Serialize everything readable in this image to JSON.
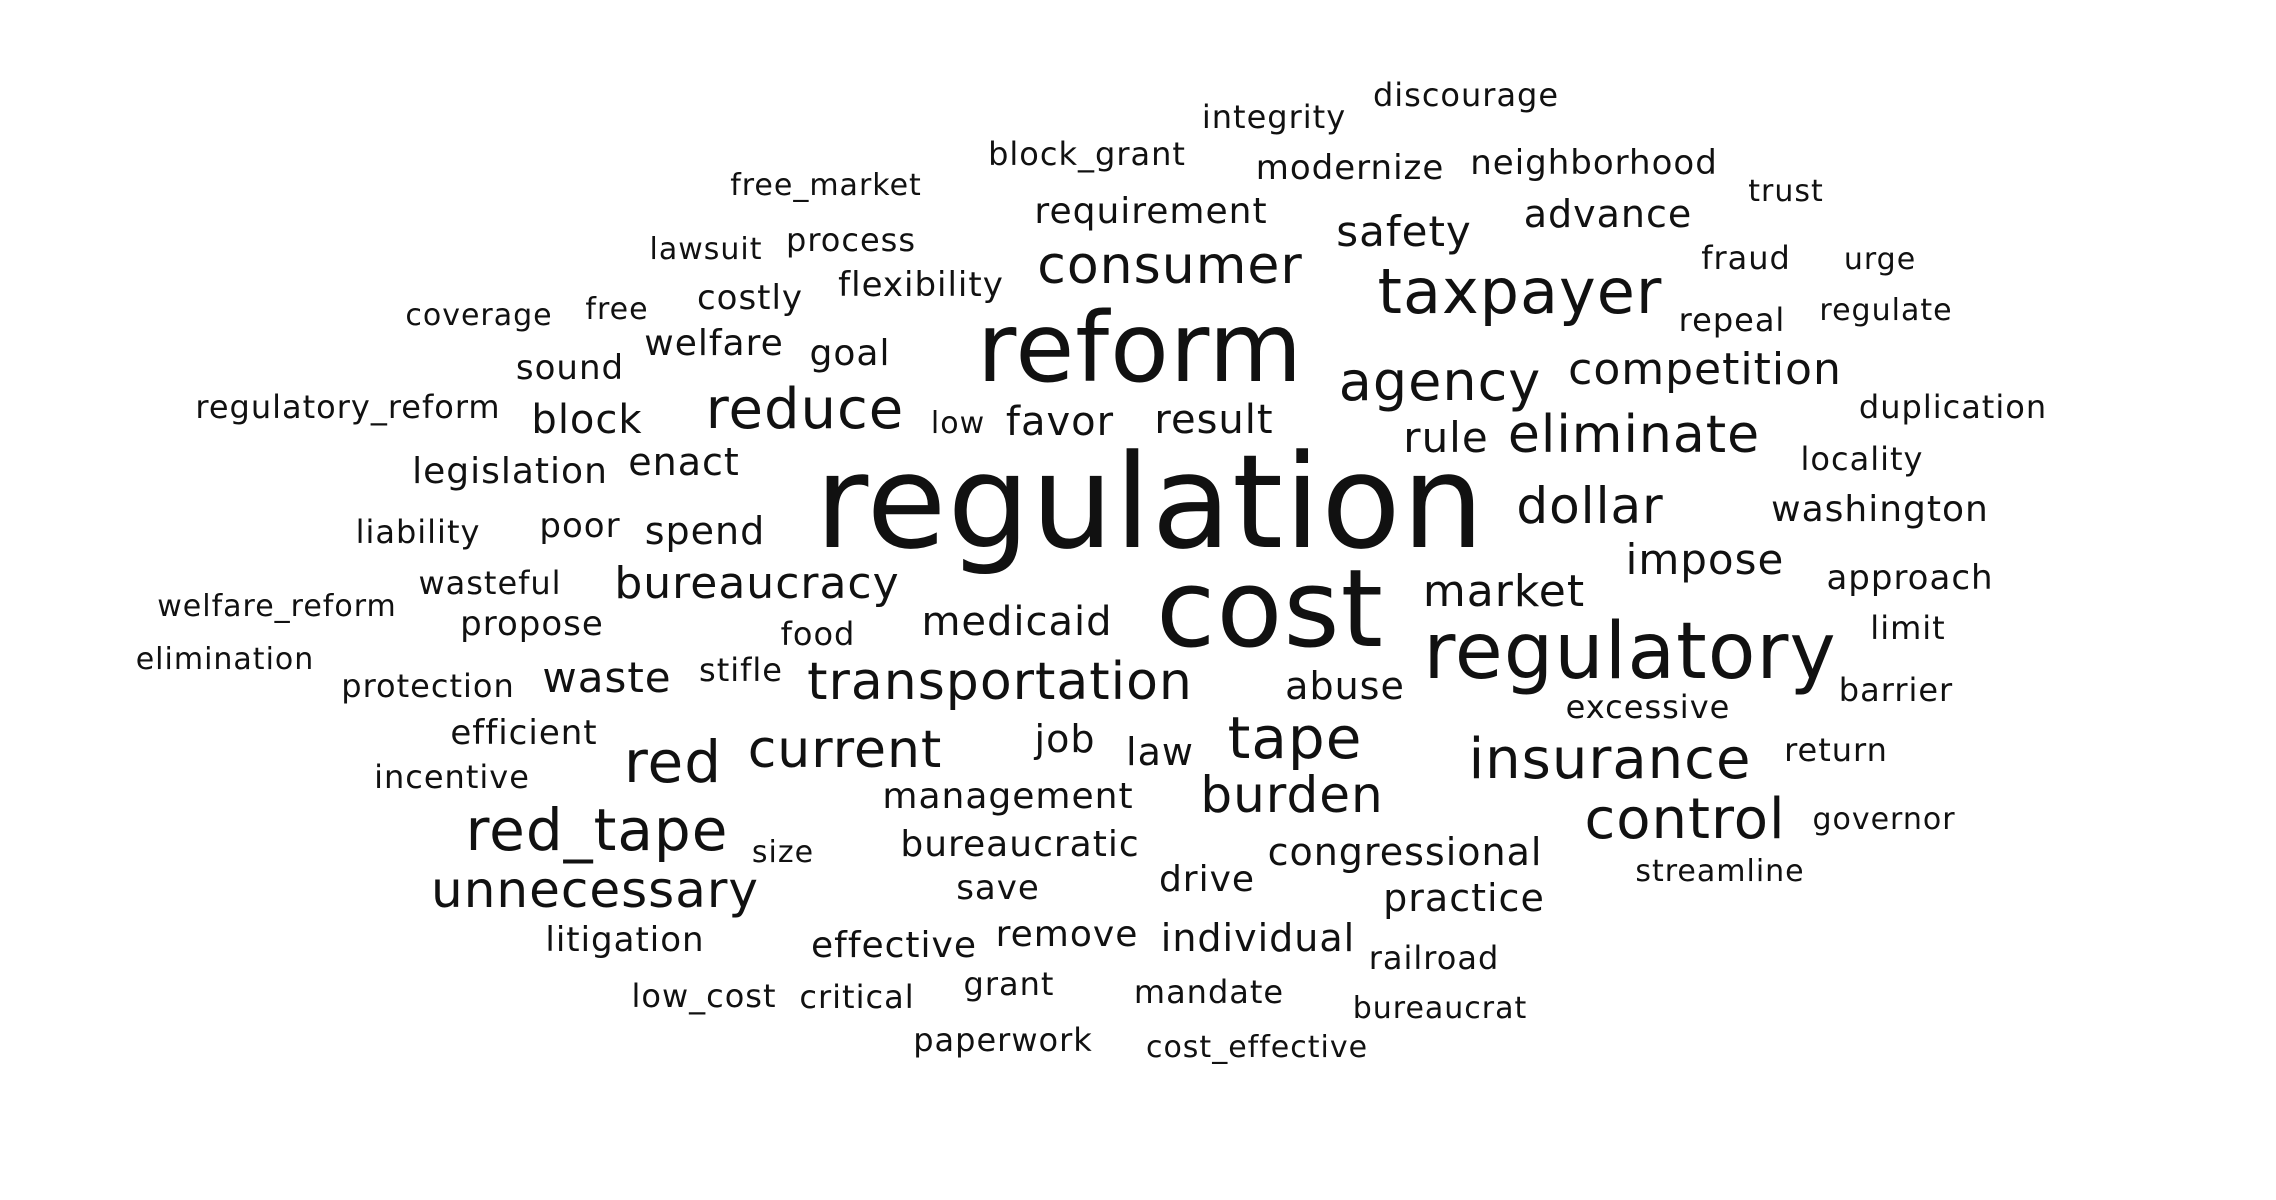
{
  "text_color": "#111111",
  "background_color": "#ffffff",
  "words": [
    "regulation",
    "cost",
    "reform",
    "regulatory",
    "taxpayer",
    "insurance",
    "tape",
    "red_tape",
    "control",
    "consumer",
    "red",
    "agency",
    "current",
    "eliminate",
    "reduce",
    "burden",
    "dollar",
    "transportation",
    "unnecessary",
    "competition",
    "bureaucracy",
    "market",
    "impose",
    "safety",
    "medicaid",
    "rule",
    "advance",
    "favor",
    "result",
    "congressional",
    "requirement",
    "practice",
    "block",
    "individual",
    "bureaucratic",
    "management",
    "waste",
    "abuse",
    "washington",
    "enact",
    "spend",
    "legislation",
    "approach",
    "drive",
    "remove",
    "welfare",
    "effective",
    "law",
    "goal",
    "poor",
    "save",
    "modernize",
    "neighborhood",
    "block_grant",
    "integrity",
    "discourage",
    "job",
    "costly",
    "sound",
    "litigation",
    "efficient",
    "propose",
    "flexibility",
    "process",
    "railroad",
    "mandate",
    "regulatory_reform",
    "critical",
    "duplication",
    "excessive",
    "fraud",
    "repeal",
    "urge",
    "regulate",
    "trust",
    "locality",
    "liability",
    "wasteful",
    "welfare_reform",
    "elimination",
    "protection",
    "incentive",
    "food",
    "stifle",
    "size",
    "paperwork",
    "grant",
    "low_cost",
    "cost_effective",
    "bureaucrat",
    "limit",
    "barrier",
    "return",
    "governor",
    "streamline",
    "lawsuit",
    "coverage",
    "free",
    "free_market",
    "low"
  ]
}
